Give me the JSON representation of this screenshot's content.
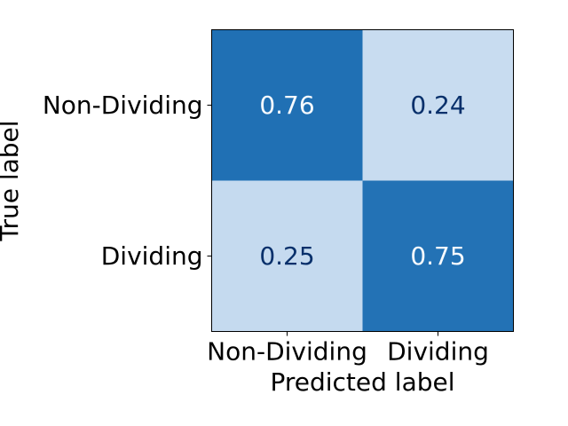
{
  "chart_data": {
    "type": "heatmap",
    "title": "",
    "xlabel": "Predicted label",
    "ylabel": "True label",
    "x_categories": [
      "Non-Dividing",
      "Dividing"
    ],
    "y_categories": [
      "Non-Dividing",
      "Dividing"
    ],
    "values": [
      [
        0.76,
        0.24
      ],
      [
        0.25,
        0.75
      ]
    ],
    "value_labels": [
      [
        "0.76",
        "0.24"
      ],
      [
        "0.25",
        "0.75"
      ]
    ],
    "colormap": "Blues",
    "colors": {
      "high_cell": "#2070b4",
      "low_cell": "#c8dcf0",
      "text_on_high": "#f7fbff",
      "text_on_low": "#08306b",
      "frame": "#000000"
    },
    "colorbar": false,
    "grid": false
  }
}
